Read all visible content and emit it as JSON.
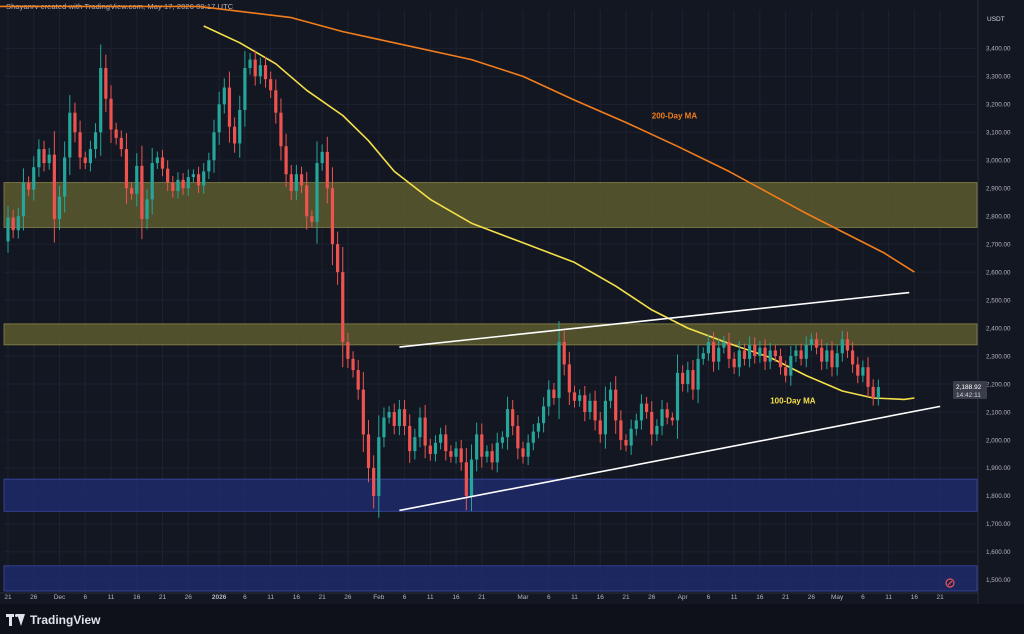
{
  "header": {
    "credit": "Shayanrv created with TradingView.com, May 17, 2026 09:17 UTC",
    "currency": "USDT"
  },
  "footer": {
    "brand": "TradingView"
  },
  "price_tag": {
    "price": "2,188.92",
    "countdown": "14:42:11"
  },
  "colors": {
    "background": "#131722",
    "bull": "#26a69a",
    "bear": "#ef5350",
    "ma100": "#f5e04a",
    "ma200": "#f27d1b",
    "supply_zone": "#5c5a2e",
    "demand_zone": "#1f2a6b"
  },
  "chart_data": {
    "type": "candlestick",
    "title": "",
    "xlabel": "",
    "ylabel": "",
    "ylim": [
      1460,
      3500
    ],
    "y_ticks": [
      "1,500.00",
      "1,600.00",
      "1,700.00",
      "1,800.00",
      "1,900.00",
      "2,000.00",
      "2,100.00",
      "2,200.00",
      "2,300.00",
      "2,400.00",
      "2,500.00",
      "2,600.00",
      "2,700.00",
      "2,800.00",
      "2,900.00",
      "3,000.00",
      "3,100.00",
      "3,200.00",
      "3,300.00",
      "3,400.00"
    ],
    "x_ticks": [
      {
        "label": "21",
        "d": 0
      },
      {
        "label": "26",
        "d": 5
      },
      {
        "label": "Dec",
        "d": 10
      },
      {
        "label": "6",
        "d": 15
      },
      {
        "label": "11",
        "d": 20
      },
      {
        "label": "16",
        "d": 25
      },
      {
        "label": "21",
        "d": 30
      },
      {
        "label": "26",
        "d": 35
      },
      {
        "label": "2026",
        "d": 41,
        "bold": true
      },
      {
        "label": "6",
        "d": 46
      },
      {
        "label": "11",
        "d": 51
      },
      {
        "label": "16",
        "d": 56
      },
      {
        "label": "21",
        "d": 61
      },
      {
        "label": "26",
        "d": 66
      },
      {
        "label": "Feb",
        "d": 72
      },
      {
        "label": "6",
        "d": 77
      },
      {
        "label": "11",
        "d": 82
      },
      {
        "label": "16",
        "d": 87
      },
      {
        "label": "21",
        "d": 92
      },
      {
        "label": "Mar",
        "d": 100
      },
      {
        "label": "6",
        "d": 105
      },
      {
        "label": "11",
        "d": 110
      },
      {
        "label": "16",
        "d": 115
      },
      {
        "label": "21",
        "d": 120
      },
      {
        "label": "26",
        "d": 125
      },
      {
        "label": "Apr",
        "d": 131
      },
      {
        "label": "6",
        "d": 136
      },
      {
        "label": "11",
        "d": 141
      },
      {
        "label": "16",
        "d": 146
      },
      {
        "label": "21",
        "d": 151
      },
      {
        "label": "26",
        "d": 156
      },
      {
        "label": "May",
        "d": 161
      },
      {
        "label": "6",
        "d": 166
      },
      {
        "label": "11",
        "d": 171
      },
      {
        "label": "16",
        "d": 176
      },
      {
        "label": "21",
        "d": 181
      }
    ],
    "zones": [
      {
        "name": "supply-zone-upper",
        "y1": 2760,
        "y2": 2920,
        "color": "#5c5a2e"
      },
      {
        "name": "supply-zone-lower",
        "y1": 2340,
        "y2": 2415,
        "color": "#5c5a2e"
      },
      {
        "name": "demand-zone-upper",
        "y1": 1745,
        "y2": 1860,
        "color": "#1f2a6b"
      },
      {
        "name": "demand-zone-lower",
        "y1": 1460,
        "y2": 1550,
        "color": "#1f2a6b"
      }
    ],
    "trendlines": [
      {
        "name": "channel-upper-line",
        "x1": 76,
        "y1": 2332,
        "x2": 175,
        "y2": 2527
      },
      {
        "name": "channel-lower-line",
        "x1": 76,
        "y1": 1748,
        "x2": 181,
        "y2": 2120
      }
    ],
    "ma_labels": [
      {
        "name": "ma200-label",
        "text": "200-Day MA",
        "x": 125,
        "y": 3150,
        "color": "#f27d1b"
      },
      {
        "name": "ma100-label",
        "text": "100-Day MA",
        "x": 148,
        "y": 2130,
        "color": "#f5e04a"
      }
    ],
    "series": [
      {
        "name": "200-Day MA",
        "color": "#f27d1b",
        "points": [
          [
            -5,
            3550
          ],
          [
            37,
            3550
          ],
          [
            55,
            3510
          ],
          [
            65,
            3460
          ],
          [
            75,
            3420
          ],
          [
            90,
            3360
          ],
          [
            100,
            3300
          ],
          [
            110,
            3215
          ],
          [
            120,
            3135
          ],
          [
            130,
            3050
          ],
          [
            140,
            2960
          ],
          [
            148,
            2880
          ],
          [
            155,
            2810
          ],
          [
            163,
            2735
          ],
          [
            170,
            2670
          ],
          [
            176,
            2600
          ]
        ]
      },
      {
        "name": "100-Day MA",
        "color": "#f5e04a",
        "points": [
          [
            38,
            3480
          ],
          [
            45,
            3420
          ],
          [
            52,
            3345
          ],
          [
            58,
            3250
          ],
          [
            65,
            3160
          ],
          [
            70,
            3070
          ],
          [
            75,
            2960
          ],
          [
            82,
            2860
          ],
          [
            90,
            2775
          ],
          [
            100,
            2705
          ],
          [
            110,
            2635
          ],
          [
            118,
            2550
          ],
          [
            125,
            2465
          ],
          [
            132,
            2400
          ],
          [
            140,
            2345
          ],
          [
            148,
            2295
          ],
          [
            155,
            2230
          ],
          [
            162,
            2175
          ],
          [
            168,
            2150
          ],
          [
            174,
            2145
          ],
          [
            176,
            2150
          ]
        ]
      }
    ],
    "candles": [
      [
        2710,
        2795
      ],
      [
        2795,
        2750
      ],
      [
        2750,
        2800
      ],
      [
        2800,
        2920
      ],
      [
        2920,
        2895
      ],
      [
        2895,
        2975
      ],
      [
        2975,
        3040
      ],
      [
        3040,
        2990
      ],
      [
        2990,
        3020
      ],
      [
        3020,
        2790
      ],
      [
        2790,
        2870
      ],
      [
        2870,
        3010
      ],
      [
        3010,
        3170
      ],
      [
        3170,
        3100
      ],
      [
        3100,
        3010
      ],
      [
        3010,
        2990
      ],
      [
        2990,
        3040
      ],
      [
        3040,
        3100
      ],
      [
        3100,
        3330
      ],
      [
        3330,
        3220
      ],
      [
        3220,
        3110
      ],
      [
        3110,
        3080
      ],
      [
        3080,
        3040
      ],
      [
        3040,
        2900
      ],
      [
        2900,
        2880
      ],
      [
        2880,
        2980
      ],
      [
        2980,
        2790
      ],
      [
        2790,
        2860
      ],
      [
        2860,
        2990
      ],
      [
        2990,
        3010
      ],
      [
        3010,
        2970
      ],
      [
        2970,
        2920
      ],
      [
        2920,
        2890
      ],
      [
        2890,
        2930
      ],
      [
        2930,
        2900
      ],
      [
        2900,
        2940
      ],
      [
        2940,
        2950
      ],
      [
        2950,
        2910
      ],
      [
        2910,
        2960
      ],
      [
        2960,
        3000
      ],
      [
        3000,
        3100
      ],
      [
        3100,
        3200
      ],
      [
        3200,
        3260
      ],
      [
        3260,
        3120
      ],
      [
        3120,
        3060
      ],
      [
        3060,
        3180
      ],
      [
        3180,
        3330
      ],
      [
        3330,
        3360
      ],
      [
        3360,
        3300
      ],
      [
        3300,
        3340
      ],
      [
        3340,
        3290
      ],
      [
        3290,
        3250
      ],
      [
        3250,
        3170
      ],
      [
        3170,
        3050
      ],
      [
        3050,
        2950
      ],
      [
        2950,
        2890
      ],
      [
        2890,
        2950
      ],
      [
        2950,
        2910
      ],
      [
        2910,
        2800
      ],
      [
        2800,
        2780
      ],
      [
        2780,
        2990
      ],
      [
        2990,
        3030
      ],
      [
        3030,
        2900
      ],
      [
        2900,
        2700
      ],
      [
        2700,
        2600
      ],
      [
        2600,
        2350
      ],
      [
        2350,
        2290
      ],
      [
        2290,
        2250
      ],
      [
        2250,
        2180
      ],
      [
        2180,
        2020
      ],
      [
        2020,
        1900
      ],
      [
        1900,
        1800
      ],
      [
        1800,
        2010
      ],
      [
        2010,
        2080
      ],
      [
        2080,
        2100
      ],
      [
        2100,
        2050
      ],
      [
        2050,
        2110
      ],
      [
        2110,
        2050
      ],
      [
        2050,
        1960
      ],
      [
        1960,
        2010
      ],
      [
        2010,
        2080
      ],
      [
        2080,
        1980
      ],
      [
        1980,
        1950
      ],
      [
        1950,
        1990
      ],
      [
        1990,
        2020
      ],
      [
        2020,
        1960
      ],
      [
        1960,
        1940
      ],
      [
        1940,
        1970
      ],
      [
        1970,
        1920
      ],
      [
        1920,
        1800
      ],
      [
        1800,
        1930
      ],
      [
        1930,
        2020
      ],
      [
        2020,
        1940
      ],
      [
        1940,
        1960
      ],
      [
        1960,
        1920
      ],
      [
        1920,
        1990
      ],
      [
        1990,
        2010
      ],
      [
        2010,
        2110
      ],
      [
        2110,
        2050
      ],
      [
        2050,
        1970
      ],
      [
        1970,
        1940
      ],
      [
        1940,
        1990
      ],
      [
        1990,
        2030
      ],
      [
        2030,
        2060
      ],
      [
        2060,
        2120
      ],
      [
        2120,
        2180
      ],
      [
        2180,
        2150
      ],
      [
        2150,
        2350
      ],
      [
        2350,
        2270
      ],
      [
        2270,
        2170
      ],
      [
        2170,
        2140
      ],
      [
        2140,
        2160
      ],
      [
        2160,
        2100
      ],
      [
        2100,
        2140
      ],
      [
        2140,
        2070
      ],
      [
        2070,
        2020
      ],
      [
        2020,
        2140
      ],
      [
        2140,
        2180
      ],
      [
        2180,
        2070
      ],
      [
        2070,
        2000
      ],
      [
        2000,
        1980
      ],
      [
        1980,
        2040
      ],
      [
        2040,
        2070
      ],
      [
        2070,
        2130
      ],
      [
        2130,
        2100
      ],
      [
        2100,
        2020
      ],
      [
        2020,
        2050
      ],
      [
        2050,
        2110
      ],
      [
        2110,
        2080
      ],
      [
        2080,
        2070
      ],
      [
        2070,
        2240
      ],
      [
        2240,
        2200
      ],
      [
        2200,
        2250
      ],
      [
        2250,
        2180
      ],
      [
        2180,
        2290
      ],
      [
        2290,
        2310
      ],
      [
        2310,
        2350
      ],
      [
        2350,
        2280
      ],
      [
        2280,
        2330
      ],
      [
        2330,
        2350
      ],
      [
        2350,
        2290
      ],
      [
        2290,
        2260
      ],
      [
        2260,
        2320
      ],
      [
        2320,
        2290
      ],
      [
        2290,
        2340
      ],
      [
        2340,
        2300
      ],
      [
        2300,
        2330
      ],
      [
        2330,
        2280
      ],
      [
        2280,
        2320
      ],
      [
        2320,
        2300
      ],
      [
        2300,
        2260
      ],
      [
        2260,
        2230
      ],
      [
        2230,
        2300
      ],
      [
        2300,
        2320
      ],
      [
        2320,
        2290
      ],
      [
        2290,
        2340
      ],
      [
        2340,
        2360
      ],
      [
        2360,
        2330
      ],
      [
        2330,
        2280
      ],
      [
        2280,
        2320
      ],
      [
        2320,
        2260
      ],
      [
        2260,
        2310
      ],
      [
        2310,
        2360
      ],
      [
        2360,
        2320
      ],
      [
        2320,
        2270
      ],
      [
        2270,
        2230
      ],
      [
        2230,
        2260
      ],
      [
        2260,
        2190
      ],
      [
        2190,
        2150
      ],
      [
        2150,
        2189
      ]
    ]
  }
}
